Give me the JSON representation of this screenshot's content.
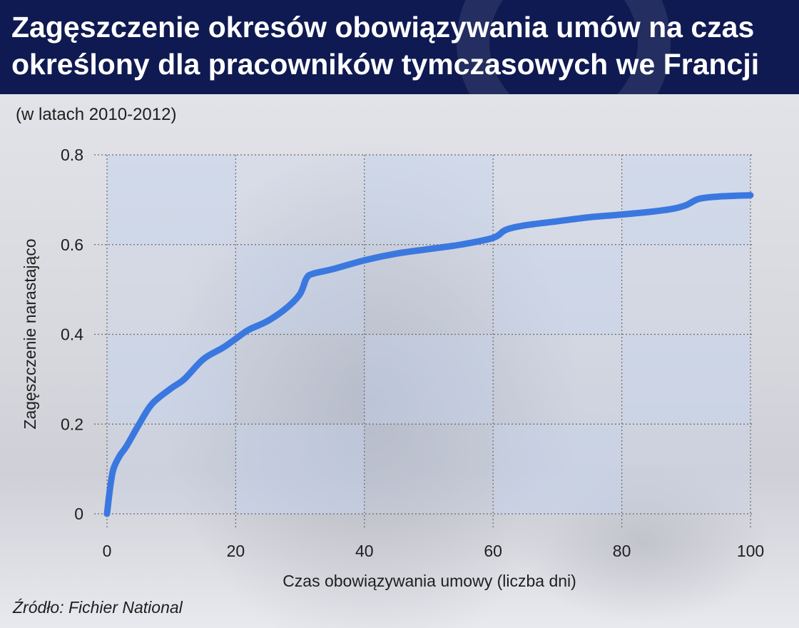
{
  "header": {
    "title": "Zagęszczenie okresów obowiązywania umów na czas określony dla pracowników tymczasowych we Francji"
  },
  "subtitle": "(w latach 2010-2012)",
  "source": "Źródło: Fichier National",
  "colors": {
    "header_bg": "#0f1a52",
    "line": "#3a78e0",
    "band": "#c5d3ec"
  },
  "chart_data": {
    "type": "line",
    "title": "Zagęszczenie okresów obowiązywania umów na czas określony dla pracowników tymczasowych we Francji",
    "subtitle": "(w latach 2010-2012)",
    "xlabel": "Czas obowiązywania umowy (liczba dni)",
    "ylabel": "Zagęszczenie narastająco",
    "xlim": [
      0,
      100
    ],
    "ylim": [
      0,
      0.8
    ],
    "xticks": [
      0,
      20,
      40,
      60,
      80,
      100
    ],
    "yticks": [
      0,
      0.2,
      0.4,
      0.6,
      0.8
    ],
    "xtick_labels": [
      "0",
      "20",
      "40",
      "60",
      "80",
      "100"
    ],
    "ytick_labels": [
      "0",
      "0.2",
      "0.4",
      "0.6",
      "0.8"
    ],
    "grid": true,
    "series": [
      {
        "name": "",
        "x": [
          0,
          0.5,
          1,
          2,
          3,
          5,
          7,
          10,
          12,
          15,
          18,
          20,
          22,
          25,
          28,
          30,
          31,
          32,
          35,
          40,
          45,
          50,
          55,
          60,
          62,
          65,
          70,
          75,
          80,
          85,
          88,
          90,
          92,
          95,
          100
        ],
        "y": [
          0,
          0.06,
          0.1,
          0.13,
          0.15,
          0.2,
          0.245,
          0.28,
          0.3,
          0.345,
          0.37,
          0.39,
          0.41,
          0.43,
          0.46,
          0.49,
          0.525,
          0.535,
          0.545,
          0.565,
          0.58,
          0.59,
          0.6,
          0.615,
          0.633,
          0.643,
          0.652,
          0.661,
          0.667,
          0.674,
          0.68,
          0.688,
          0.702,
          0.707,
          0.71
        ]
      }
    ]
  }
}
